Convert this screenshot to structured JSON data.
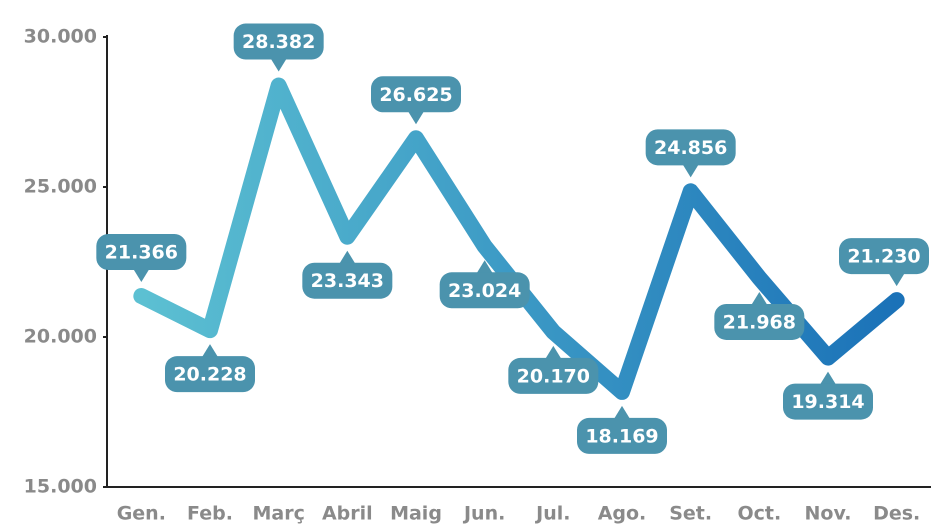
{
  "chart_data": {
    "type": "line",
    "categories": [
      "Gen.",
      "Feb.",
      "Març",
      "Abril",
      "Maig",
      "Jun.",
      "Jul.",
      "Ago.",
      "Set.",
      "Oct.",
      "Nov.",
      "Des."
    ],
    "values": [
      21366,
      20228,
      28382,
      23343,
      26625,
      23024,
      20170,
      18169,
      24856,
      21968,
      19314,
      21230
    ],
    "value_labels": [
      "21.366",
      "20.228",
      "28.382",
      "23.343",
      "26.625",
      "23.024",
      "20.170",
      "18.169",
      "24.856",
      "21.968",
      "19.314",
      "21.230"
    ],
    "colors": [
      "#5cc0d2",
      "#1b72b8"
    ],
    "label_color": "#4b93ad",
    "ylim": [
      15000,
      30000
    ],
    "yticks": [
      {
        "value": 15000,
        "label": "15.000"
      },
      {
        "value": 20000,
        "label": "20.000"
      },
      {
        "value": 25000,
        "label": "25.000"
      },
      {
        "value": 30000,
        "label": "30.000"
      }
    ]
  }
}
